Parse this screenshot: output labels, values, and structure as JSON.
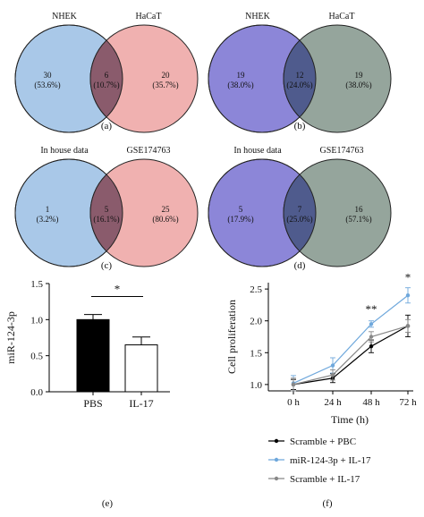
{
  "chart_data": [
    {
      "type": "venn",
      "panel_label": "(a)",
      "sets": [
        "NHEK",
        "HaCaT"
      ],
      "colors": [
        "#a9c8e8",
        "#f0b1b0"
      ],
      "overlap_color": "#8a5b6c",
      "regions": [
        {
          "count": "30",
          "percent": "(53.6%)"
        },
        {
          "count": "6",
          "percent": "(10.7%)"
        },
        {
          "count": "20",
          "percent": "(35.7%)"
        }
      ]
    },
    {
      "type": "venn",
      "panel_label": "(b)",
      "sets": [
        "NHEK",
        "HaCaT"
      ],
      "colors": [
        "#8c86d8",
        "#95a59c"
      ],
      "overlap_color": "#4f5b8d",
      "regions": [
        {
          "count": "19",
          "percent": "(38.0%)"
        },
        {
          "count": "12",
          "percent": "(24.0%)"
        },
        {
          "count": "19",
          "percent": "(38.0%)"
        }
      ]
    },
    {
      "type": "venn",
      "panel_label": "(c)",
      "sets": [
        "In house data",
        "GSE174763"
      ],
      "colors": [
        "#a9c8e8",
        "#f0b1b0"
      ],
      "overlap_color": "#8a5b6c",
      "regions": [
        {
          "count": "1",
          "percent": "(3.2%)"
        },
        {
          "count": "5",
          "percent": "(16.1%)"
        },
        {
          "count": "25",
          "percent": "(80.6%)"
        }
      ]
    },
    {
      "type": "venn",
      "panel_label": "(d)",
      "sets": [
        "In house data",
        "GSE174763"
      ],
      "colors": [
        "#8c86d8",
        "#95a59c"
      ],
      "overlap_color": "#4f5b8d",
      "regions": [
        {
          "count": "5",
          "percent": "(17.9%)"
        },
        {
          "count": "7",
          "percent": "(25.0%)"
        },
        {
          "count": "16",
          "percent": "(57.1%)"
        }
      ]
    },
    {
      "type": "bar",
      "panel_label": "(e)",
      "categories": [
        "PBS",
        "IL-17"
      ],
      "values": [
        1.0,
        0.65
      ],
      "errors": [
        0.07,
        0.11
      ],
      "bar_colors": [
        "#000000",
        "#ffffff"
      ],
      "ylabel": "miR-124-3p",
      "ylim": [
        0,
        1.5
      ],
      "yticks": [
        "0.0",
        "0.5",
        "1.0",
        "1.5"
      ],
      "significance": "*"
    },
    {
      "type": "line",
      "panel_label": "(f)",
      "x": [
        "0 h",
        "24 h",
        "48 h",
        "72 h"
      ],
      "xlabel": "Time (h)",
      "ylabel": "Cell proliferation",
      "ylim": [
        0.9,
        2.6
      ],
      "yticks": [
        "1.0",
        "1.5",
        "2.0",
        "2.5"
      ],
      "series": [
        {
          "name": "Scramble + PBC",
          "values": [
            1.0,
            1.1,
            1.6,
            1.92
          ],
          "errors": [
            0.08,
            0.07,
            0.1,
            0.17
          ],
          "color": "#000000"
        },
        {
          "name": "miR-124-3p + IL-17",
          "values": [
            1.02,
            1.3,
            1.95,
            2.4
          ],
          "errors": [
            0.12,
            0.12,
            0.05,
            0.12
          ],
          "color": "#6fa8dc"
        },
        {
          "name": "Scramble + IL-17",
          "values": [
            1.0,
            1.15,
            1.75,
            1.92
          ],
          "errors": [
            0.1,
            0.08,
            0.08,
            0.1
          ],
          "color": "#888888"
        }
      ],
      "annotations": [
        {
          "x": "48 h",
          "text": "**"
        },
        {
          "x": "72 h",
          "text": "*"
        }
      ]
    }
  ]
}
